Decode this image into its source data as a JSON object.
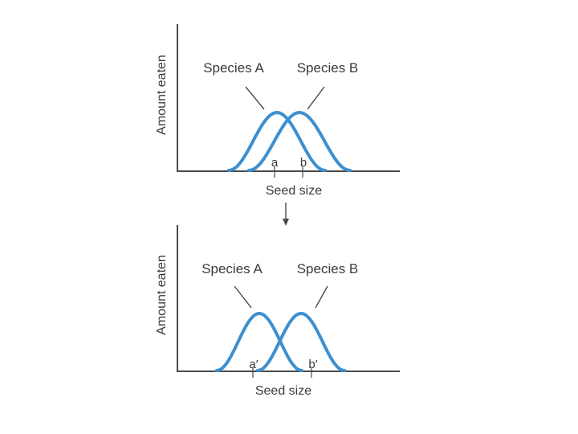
{
  "top_panel": {
    "y_axis_label": "Amount eaten",
    "x_axis_label": "Seed size",
    "species_a_label": "Species A",
    "species_b_label": "Species B",
    "tick_a_label": "a",
    "tick_b_label": "b"
  },
  "bottom_panel": {
    "y_axis_label": "Amount eaten",
    "x_axis_label": "Seed size",
    "species_a_label": "Species A",
    "species_b_label": "Species B",
    "tick_a_label": "a′",
    "tick_b_label": "b′"
  },
  "colors": {
    "curve": "#3d8fcf",
    "axis": "#4a4a4a",
    "text": "#3a3a3a"
  }
}
